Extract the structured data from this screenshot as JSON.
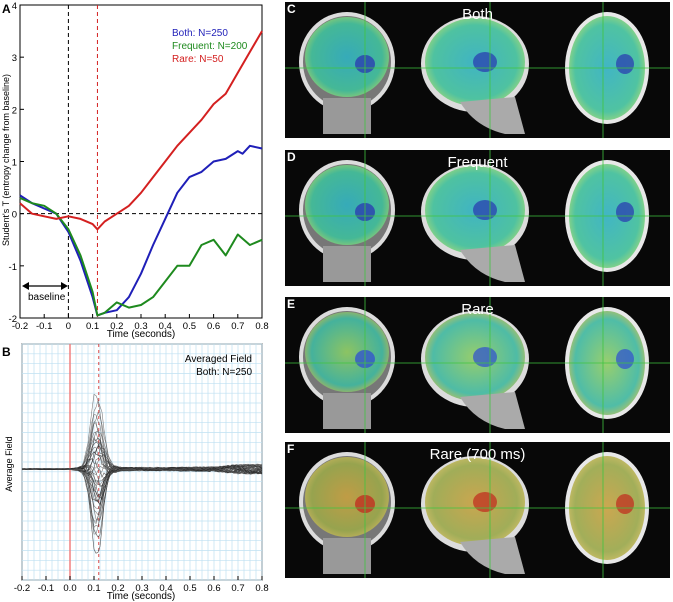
{
  "panel_a": {
    "letter": "A",
    "legend": [
      {
        "label": "Both: N=250",
        "color": "#1f1fb8"
      },
      {
        "label": "Frequent: N=200",
        "color": "#1e8a1e"
      },
      {
        "label": "Rare: N=50",
        "color": "#d42020"
      }
    ],
    "baseline_label": "baseline",
    "xlabel": "Time (seconds)",
    "ylabel": "Student's T (entropy change from baseline)",
    "xticks": [
      "-0.2",
      "-0.1",
      "0",
      "0.1",
      "0.2",
      "0.3",
      "0.4",
      "0.5",
      "0.6",
      "0.7",
      "0.8"
    ],
    "yticks": [
      "4",
      "3",
      "2",
      "1",
      "0",
      "-1",
      "-2"
    ]
  },
  "panel_b": {
    "letter": "B",
    "title_line1": "Averaged Field",
    "title_line2": "Both: N=250",
    "xlabel": "Time (seconds)",
    "ylabel": "Average Field",
    "xticks": [
      "-0.2",
      "-0.1",
      "0.0",
      "0.1",
      "0.2",
      "0.3",
      "0.4",
      "0.5",
      "0.6",
      "0.7",
      "0.8"
    ]
  },
  "brain_panels": [
    {
      "letter": "C",
      "title": "Both",
      "scheme": "blue"
    },
    {
      "letter": "D",
      "title": "Frequent",
      "scheme": "blue"
    },
    {
      "letter": "E",
      "title": "Rare",
      "scheme": "mixed"
    },
    {
      "letter": "F",
      "title": "Rare (700 ms)",
      "scheme": "red"
    }
  ],
  "chart_data": [
    {
      "type": "line",
      "xlabel": "Time (seconds)",
      "ylabel": "Student's T (entropy change from baseline)",
      "xlim": [
        -0.2,
        0.8
      ],
      "ylim": [
        -2,
        4
      ],
      "grid": false,
      "legend_position": "top-right",
      "reference_lines": {
        "x": [
          0,
          0.12
        ],
        "y": [
          0
        ]
      },
      "series": [
        {
          "name": "Both: N=250",
          "color": "#1f1fb8",
          "x": [
            -0.2,
            -0.15,
            -0.1,
            -0.05,
            0,
            0.05,
            0.1,
            0.12,
            0.15,
            0.2,
            0.25,
            0.3,
            0.35,
            0.4,
            0.45,
            0.5,
            0.55,
            0.6,
            0.65,
            0.7,
            0.72,
            0.75,
            0.8
          ],
          "y": [
            0.35,
            0.2,
            0.1,
            0,
            -0.35,
            -0.9,
            -1.6,
            -1.95,
            -1.9,
            -1.85,
            -1.6,
            -1.15,
            -0.6,
            -0.1,
            0.4,
            0.7,
            0.8,
            1.0,
            1.05,
            1.2,
            1.15,
            1.3,
            1.25
          ]
        },
        {
          "name": "Frequent: N=200",
          "color": "#1e8a1e",
          "x": [
            -0.2,
            -0.15,
            -0.1,
            -0.05,
            0,
            0.05,
            0.1,
            0.12,
            0.15,
            0.2,
            0.25,
            0.3,
            0.35,
            0.4,
            0.45,
            0.5,
            0.55,
            0.6,
            0.65,
            0.7,
            0.75,
            0.8
          ],
          "y": [
            0.3,
            0.2,
            0.15,
            0,
            -0.3,
            -0.8,
            -1.5,
            -1.95,
            -1.9,
            -1.7,
            -1.8,
            -1.75,
            -1.6,
            -1.3,
            -1.0,
            -1.0,
            -0.6,
            -0.5,
            -0.8,
            -0.4,
            -0.6,
            -0.5
          ]
        },
        {
          "name": "Rare: N=50",
          "color": "#d42020",
          "x": [
            -0.2,
            -0.15,
            -0.1,
            -0.05,
            0,
            0.05,
            0.1,
            0.12,
            0.15,
            0.2,
            0.25,
            0.3,
            0.35,
            0.4,
            0.45,
            0.5,
            0.55,
            0.6,
            0.65,
            0.7,
            0.75,
            0.8
          ],
          "y": [
            0.2,
            0.0,
            -0.05,
            -0.1,
            -0.05,
            -0.1,
            -0.2,
            -0.3,
            -0.15,
            0.0,
            0.15,
            0.4,
            0.7,
            1.0,
            1.3,
            1.55,
            1.8,
            2.1,
            2.3,
            2.7,
            3.1,
            3.5
          ]
        }
      ]
    },
    {
      "type": "line",
      "title": "Averaged Field",
      "subtitle": "Both: N=250",
      "xlabel": "Time (seconds)",
      "ylabel": "Average Field",
      "xlim": [
        -0.2,
        0.8
      ],
      "grid": true,
      "reference_lines": {
        "x": [
          0.0,
          0.12
        ]
      },
      "series": [
        {
          "name": "",
          "x": [
            -0.2,
            -0.1,
            0.0,
            0.05,
            0.08,
            0.1,
            0.12,
            0.14,
            0.16,
            0.2,
            0.25,
            0.3,
            0.4,
            0.5,
            0.6,
            0.7,
            0.8
          ],
          "y": [
            0,
            0,
            0,
            0.2,
            0.6,
            1.2,
            1.7,
            1.1,
            0.5,
            0.2,
            0.1,
            0.2,
            0.15,
            0.2,
            0.2,
            0.5,
            0.6
          ]
        },
        {
          "name": "",
          "x": [
            -0.2,
            -0.1,
            0.0,
            0.05,
            0.08,
            0.1,
            0.12,
            0.14,
            0.16,
            0.2,
            0.25,
            0.3,
            0.4,
            0.5,
            0.6,
            0.7,
            0.8
          ],
          "y": [
            0,
            0,
            0,
            -0.2,
            -0.6,
            -1.0,
            -1.5,
            -1.2,
            -0.7,
            -0.3,
            -0.1,
            -0.2,
            -0.15,
            -0.1,
            -0.2,
            -0.2,
            -0.3
          ]
        }
      ]
    }
  ]
}
